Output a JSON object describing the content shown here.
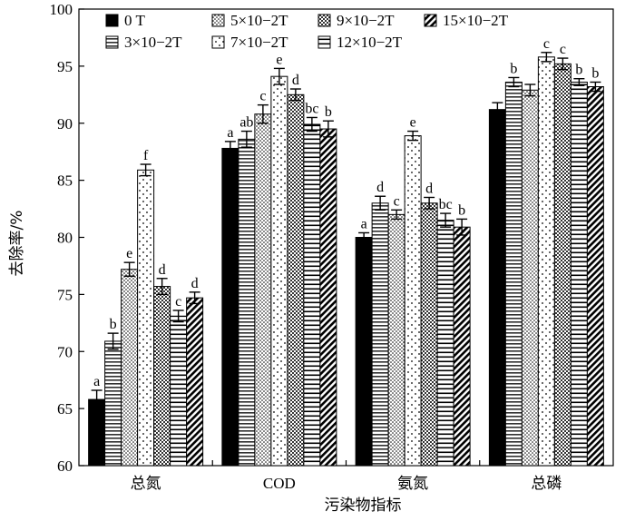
{
  "chart_data": {
    "type": "bar",
    "categories": [
      "总氮",
      "COD",
      "氨氮",
      "总磷"
    ],
    "xlabel": "污染物指标",
    "ylabel": "去除率/%",
    "ylim": [
      60,
      100
    ],
    "yticks": [
      60,
      65,
      70,
      75,
      80,
      85,
      90,
      95,
      100
    ],
    "grid": false,
    "legend_position": "top",
    "series": [
      {
        "name": "0 T",
        "pattern": "solid",
        "values": [
          65.8,
          87.8,
          80.0,
          91.2
        ],
        "errors": [
          0.8,
          0.6,
          0.4,
          0.6
        ],
        "labels": [
          "a",
          "a",
          "a",
          ""
        ]
      },
      {
        "name": "3×10−2T",
        "pattern": "hlines",
        "values": [
          70.9,
          88.6,
          83.0,
          93.6
        ],
        "errors": [
          0.7,
          0.7,
          0.6,
          0.4
        ],
        "labels": [
          "b",
          "ab",
          "d",
          "b"
        ]
      },
      {
        "name": "5×10−2T",
        "pattern": "dots",
        "values": [
          77.2,
          90.8,
          82.0,
          92.9
        ],
        "errors": [
          0.6,
          0.8,
          0.4,
          0.5
        ],
        "labels": [
          "e",
          "c",
          "c",
          ""
        ]
      },
      {
        "name": "7×10−2T",
        "pattern": "sparse-dots",
        "values": [
          85.9,
          94.1,
          88.9,
          95.8
        ],
        "errors": [
          0.5,
          0.7,
          0.4,
          0.4
        ],
        "labels": [
          "f",
          "e",
          "e",
          "c"
        ]
      },
      {
        "name": "9×10−2T",
        "pattern": "checker",
        "values": [
          75.7,
          92.5,
          83.0,
          95.2
        ],
        "errors": [
          0.7,
          0.5,
          0.5,
          0.5
        ],
        "labels": [
          "d",
          "d",
          "d",
          "c"
        ]
      },
      {
        "name": "12×10−2T",
        "pattern": "hlines-wide",
        "values": [
          73.1,
          89.9,
          81.5,
          93.6
        ],
        "errors": [
          0.5,
          0.6,
          0.6,
          0.3
        ],
        "labels": [
          "c",
          "bc",
          "bc",
          "b"
        ]
      },
      {
        "name": "15×10−2T",
        "pattern": "diagonal",
        "values": [
          74.7,
          89.5,
          80.9,
          93.2
        ],
        "errors": [
          0.5,
          0.7,
          0.7,
          0.4
        ],
        "labels": [
          "d",
          "b",
          "b",
          "b"
        ]
      }
    ],
    "legend_order": [
      0,
      2,
      4,
      6,
      1,
      3,
      5
    ]
  }
}
